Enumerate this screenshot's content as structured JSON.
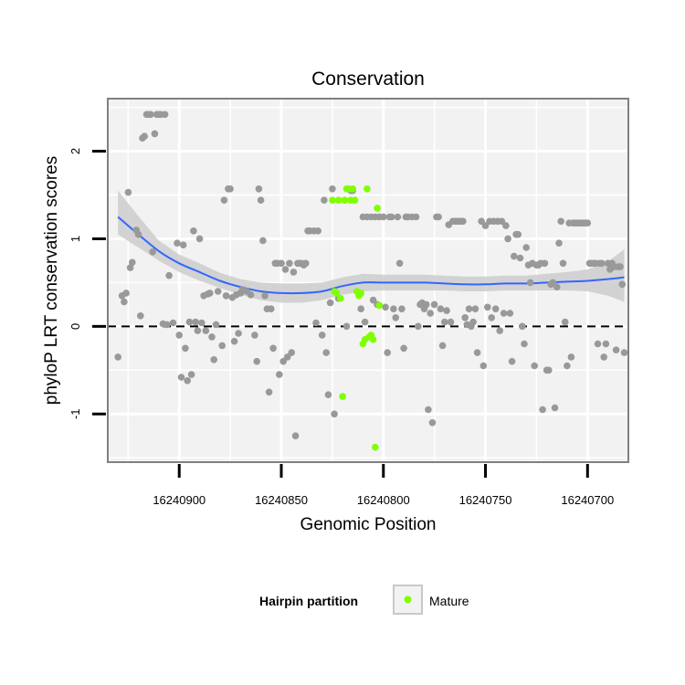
{
  "chart_data": {
    "type": "scatter",
    "title": "Conservation",
    "xlabel": "Genomic Position",
    "ylabel": "phyloP LRT conservation scores",
    "x_reversed": true,
    "xlim": [
      16240680,
      16240935
    ],
    "ylim": [
      -1.55,
      2.6
    ],
    "x_ticks": [
      16240900,
      16240850,
      16240800,
      16240750,
      16240700
    ],
    "y_ticks": [
      -1,
      0,
      1,
      2
    ],
    "reference_line": {
      "y": 0,
      "style": "dashed"
    },
    "grid": true,
    "legend": {
      "title": "Hairpin partition",
      "entries": [
        {
          "label": "Mature",
          "color": "#7fff00"
        }
      ],
      "placement": "bottom"
    },
    "colors": {
      "background": "#f2f2f2",
      "gridline": "#ffffff",
      "point_other": "#999999",
      "point_mature": "#7fff00",
      "smooth_line": "#3366ff",
      "ribbon": "#cccccc",
      "panel_border": "#808080"
    },
    "series": [
      {
        "name": "Other",
        "color": "#999999",
        "points": [
          [
            16240930,
            -0.35
          ],
          [
            16240928,
            0.35
          ],
          [
            16240927,
            0.28
          ],
          [
            16240926,
            0.38
          ],
          [
            16240925,
            1.53
          ],
          [
            16240924,
            0.67
          ],
          [
            16240923,
            0.73
          ],
          [
            16240921,
            1.1
          ],
          [
            16240920,
            1.05
          ],
          [
            16240919,
            0.12
          ],
          [
            16240918,
            2.15
          ],
          [
            16240917,
            2.17
          ],
          [
            16240916,
            2.42
          ],
          [
            16240915,
            2.42
          ],
          [
            16240914,
            2.42
          ],
          [
            16240913,
            0.85
          ],
          [
            16240912,
            2.2
          ],
          [
            16240911,
            2.42
          ],
          [
            16240910,
            2.42
          ],
          [
            16240909,
            2.42
          ],
          [
            16240908,
            0.03
          ],
          [
            16240907,
            2.42
          ],
          [
            16240906,
            0.02
          ],
          [
            16240905,
            0.58
          ],
          [
            16240903,
            0.04
          ],
          [
            16240901,
            0.95
          ],
          [
            16240900,
            -0.1
          ],
          [
            16240899,
            -0.58
          ],
          [
            16240898,
            0.93
          ],
          [
            16240897,
            -0.25
          ],
          [
            16240896,
            -0.62
          ],
          [
            16240895,
            0.05
          ],
          [
            16240894,
            -0.55
          ],
          [
            16240893,
            1.09
          ],
          [
            16240892,
            0.05
          ],
          [
            16240891,
            -0.05
          ],
          [
            16240890,
            1.0
          ],
          [
            16240889,
            0.04
          ],
          [
            16240888,
            0.35
          ],
          [
            16240887,
            -0.05
          ],
          [
            16240886,
            0.37
          ],
          [
            16240885,
            0.38
          ],
          [
            16240884,
            -0.12
          ],
          [
            16240883,
            -0.38
          ],
          [
            16240882,
            0.02
          ],
          [
            16240881,
            0.4
          ],
          [
            16240879,
            -0.22
          ],
          [
            16240878,
            1.44
          ],
          [
            16240877,
            0.35
          ],
          [
            16240876,
            1.57
          ],
          [
            16240875,
            1.57
          ],
          [
            16240874,
            0.33
          ],
          [
            16240873,
            -0.17
          ],
          [
            16240872,
            0.36
          ],
          [
            16240871,
            -0.08
          ],
          [
            16240870,
            0.38
          ],
          [
            16240869,
            0.42
          ],
          [
            16240867,
            0.4
          ],
          [
            16240865,
            0.36
          ],
          [
            16240863,
            -0.1
          ],
          [
            16240862,
            -0.4
          ],
          [
            16240861,
            1.57
          ],
          [
            16240860,
            1.44
          ],
          [
            16240859,
            0.98
          ],
          [
            16240858,
            0.35
          ],
          [
            16240857,
            0.2
          ],
          [
            16240856,
            -0.75
          ],
          [
            16240855,
            0.2
          ],
          [
            16240854,
            -0.25
          ],
          [
            16240853,
            0.72
          ],
          [
            16240852,
            0.72
          ],
          [
            16240851,
            -0.55
          ],
          [
            16240850,
            0.72
          ],
          [
            16240849,
            -0.4
          ],
          [
            16240848,
            0.65
          ],
          [
            16240847,
            -0.35
          ],
          [
            16240846,
            0.72
          ],
          [
            16240845,
            -0.3
          ],
          [
            16240844,
            0.62
          ],
          [
            16240843,
            -1.25
          ],
          [
            16240842,
            0.72
          ],
          [
            16240841,
            0.72
          ],
          [
            16240840,
            0.72
          ],
          [
            16240839,
            0.7
          ],
          [
            16240838,
            0.72
          ],
          [
            16240837,
            1.09
          ],
          [
            16240836,
            1.09
          ],
          [
            16240834,
            1.09
          ],
          [
            16240833,
            0.04
          ],
          [
            16240832,
            1.09
          ],
          [
            16240830,
            -0.1
          ],
          [
            16240829,
            1.44
          ],
          [
            16240828,
            -0.3
          ],
          [
            16240827,
            -0.78
          ],
          [
            16240826,
            0.27
          ],
          [
            16240825,
            1.57
          ],
          [
            16240824,
            -1.0
          ],
          [
            16240822,
            0.32
          ],
          [
            16240818,
            0.0
          ],
          [
            16240816,
            1.55
          ],
          [
            16240815,
            1.55
          ],
          [
            16240811,
            0.2
          ],
          [
            16240810,
            1.25
          ],
          [
            16240809,
            0.05
          ],
          [
            16240808,
            1.25
          ],
          [
            16240806,
            1.25
          ],
          [
            16240805,
            0.3
          ],
          [
            16240804,
            1.25
          ],
          [
            16240803,
            0.25
          ],
          [
            16240802,
            1.25
          ],
          [
            16240800,
            1.25
          ],
          [
            16240799,
            0.22
          ],
          [
            16240798,
            -0.3
          ],
          [
            16240797,
            1.25
          ],
          [
            16240796,
            1.25
          ],
          [
            16240795,
            0.2
          ],
          [
            16240794,
            0.1
          ],
          [
            16240793,
            1.25
          ],
          [
            16240792,
            0.72
          ],
          [
            16240791,
            0.2
          ],
          [
            16240790,
            -0.25
          ],
          [
            16240789,
            1.25
          ],
          [
            16240788,
            1.25
          ],
          [
            16240786,
            1.25
          ],
          [
            16240784,
            1.25
          ],
          [
            16240783,
            0.0
          ],
          [
            16240782,
            0.25
          ],
          [
            16240781,
            0.27
          ],
          [
            16240780,
            0.2
          ],
          [
            16240779,
            0.25
          ],
          [
            16240778,
            -0.95
          ],
          [
            16240777,
            0.15
          ],
          [
            16240776,
            -1.1
          ],
          [
            16240775,
            0.25
          ],
          [
            16240774,
            1.25
          ],
          [
            16240773,
            1.25
          ],
          [
            16240772,
            0.2
          ],
          [
            16240771,
            -0.22
          ],
          [
            16240770,
            0.05
          ],
          [
            16240769,
            0.18
          ],
          [
            16240768,
            1.16
          ],
          [
            16240767,
            0.05
          ],
          [
            16240766,
            1.2
          ],
          [
            16240765,
            1.2
          ],
          [
            16240764,
            1.2
          ],
          [
            16240763,
            1.2
          ],
          [
            16240762,
            1.2
          ],
          [
            16240761,
            1.2
          ],
          [
            16240760,
            0.1
          ],
          [
            16240759,
            0.02
          ],
          [
            16240758,
            0.2
          ],
          [
            16240757,
            0.0
          ],
          [
            16240756,
            0.05
          ],
          [
            16240755,
            0.2
          ],
          [
            16240754,
            -0.3
          ],
          [
            16240752,
            1.2
          ],
          [
            16240751,
            -0.45
          ],
          [
            16240750,
            1.15
          ],
          [
            16240749,
            0.22
          ],
          [
            16240748,
            1.2
          ],
          [
            16240747,
            0.1
          ],
          [
            16240746,
            1.2
          ],
          [
            16240745,
            0.2
          ],
          [
            16240744,
            1.2
          ],
          [
            16240743,
            -0.05
          ],
          [
            16240742,
            1.2
          ],
          [
            16240741,
            0.15
          ],
          [
            16240740,
            1.15
          ],
          [
            16240739,
            1.0
          ],
          [
            16240738,
            0.15
          ],
          [
            16240737,
            -0.4
          ],
          [
            16240736,
            0.8
          ],
          [
            16240735,
            1.05
          ],
          [
            16240734,
            1.05
          ],
          [
            16240733,
            0.78
          ],
          [
            16240732,
            0.0
          ],
          [
            16240731,
            -0.2
          ],
          [
            16240730,
            0.9
          ],
          [
            16240729,
            0.7
          ],
          [
            16240728,
            0.5
          ],
          [
            16240727,
            0.72
          ],
          [
            16240726,
            -0.45
          ],
          [
            16240725,
            0.7
          ],
          [
            16240724,
            0.7
          ],
          [
            16240723,
            0.72
          ],
          [
            16240722,
            -0.95
          ],
          [
            16240721,
            0.72
          ],
          [
            16240720,
            -0.5
          ],
          [
            16240719,
            -0.5
          ],
          [
            16240718,
            0.48
          ],
          [
            16240717,
            0.5
          ],
          [
            16240716,
            -0.93
          ],
          [
            16240715,
            0.45
          ],
          [
            16240714,
            0.95
          ],
          [
            16240713,
            1.2
          ],
          [
            16240712,
            0.72
          ],
          [
            16240711,
            0.05
          ],
          [
            16240710,
            -0.45
          ],
          [
            16240709,
            1.18
          ],
          [
            16240708,
            -0.35
          ],
          [
            16240707,
            1.18
          ],
          [
            16240706,
            1.18
          ],
          [
            16240705,
            1.18
          ],
          [
            16240704,
            1.18
          ],
          [
            16240703,
            1.18
          ],
          [
            16240702,
            1.18
          ],
          [
            16240701,
            1.18
          ],
          [
            16240700,
            1.18
          ],
          [
            16240699,
            0.72
          ],
          [
            16240698,
            0.72
          ],
          [
            16240697,
            0.72
          ],
          [
            16240696,
            0.72
          ],
          [
            16240695,
            -0.2
          ],
          [
            16240694,
            0.72
          ],
          [
            16240693,
            0.72
          ],
          [
            16240692,
            -0.35
          ],
          [
            16240691,
            -0.2
          ],
          [
            16240690,
            0.72
          ],
          [
            16240689,
            0.65
          ],
          [
            16240688,
            0.72
          ],
          [
            16240687,
            0.68
          ],
          [
            16240686,
            -0.27
          ],
          [
            16240685,
            0.68
          ],
          [
            16240684,
            0.68
          ],
          [
            16240683,
            0.48
          ],
          [
            16240682,
            -0.3
          ]
        ]
      },
      {
        "name": "Mature",
        "color": "#7fff00",
        "points": [
          [
            16240825,
            1.44
          ],
          [
            16240824,
            0.4
          ],
          [
            16240823,
            0.38
          ],
          [
            16240822,
            1.44
          ],
          [
            16240821,
            0.32
          ],
          [
            16240820,
            -0.8
          ],
          [
            16240819,
            1.44
          ],
          [
            16240818,
            1.57
          ],
          [
            16240817,
            1.57
          ],
          [
            16240816,
            1.44
          ],
          [
            16240815,
            1.57
          ],
          [
            16240814,
            1.44
          ],
          [
            16240813,
            0.4
          ],
          [
            16240812,
            0.35
          ],
          [
            16240811,
            0.38
          ],
          [
            16240810,
            -0.2
          ],
          [
            16240809,
            -0.15
          ],
          [
            16240808,
            1.57
          ],
          [
            16240807,
            -0.12
          ],
          [
            16240806,
            -0.1
          ],
          [
            16240805,
            -0.15
          ],
          [
            16240804,
            -1.38
          ],
          [
            16240803,
            1.35
          ],
          [
            16240802,
            0.24
          ]
        ]
      }
    ],
    "smooth": {
      "x": [
        16240930,
        16240920,
        16240910,
        16240900,
        16240890,
        16240880,
        16240870,
        16240860,
        16240850,
        16240840,
        16240830,
        16240820,
        16240810,
        16240800,
        16240790,
        16240780,
        16240770,
        16240760,
        16240750,
        16240740,
        16240730,
        16240720,
        16240710,
        16240700,
        16240690,
        16240682
      ],
      "y": [
        1.25,
        1.05,
        0.86,
        0.72,
        0.62,
        0.52,
        0.45,
        0.4,
        0.38,
        0.38,
        0.4,
        0.46,
        0.5,
        0.5,
        0.5,
        0.5,
        0.49,
        0.48,
        0.48,
        0.49,
        0.49,
        0.5,
        0.51,
        0.52,
        0.54,
        0.56
      ],
      "lower": [
        1.05,
        0.9,
        0.75,
        0.62,
        0.52,
        0.44,
        0.36,
        0.3,
        0.27,
        0.27,
        0.3,
        0.36,
        0.4,
        0.41,
        0.41,
        0.41,
        0.41,
        0.4,
        0.4,
        0.41,
        0.41,
        0.41,
        0.41,
        0.4,
        0.35,
        0.28
      ],
      "upper": [
        1.55,
        1.26,
        0.98,
        0.82,
        0.72,
        0.61,
        0.54,
        0.5,
        0.49,
        0.49,
        0.5,
        0.56,
        0.6,
        0.59,
        0.59,
        0.59,
        0.58,
        0.57,
        0.57,
        0.58,
        0.58,
        0.6,
        0.62,
        0.65,
        0.74,
        0.88
      ]
    }
  }
}
